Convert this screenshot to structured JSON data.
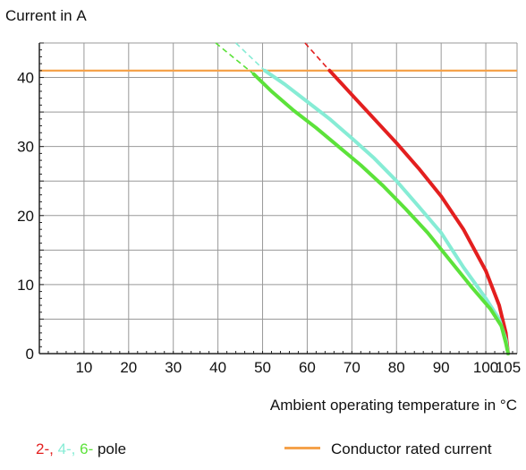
{
  "chart_data": {
    "type": "line",
    "title": "",
    "ylabel": "Current in A",
    "xlabel": "Ambient operating temperature in °C",
    "xlim": [
      0,
      107
    ],
    "ylim": [
      0,
      45
    ],
    "x_ticks": [
      10,
      20,
      30,
      40,
      50,
      60,
      70,
      80,
      90,
      100,
      105
    ],
    "y_ticks": [
      0,
      10,
      20,
      30,
      40
    ],
    "grid": true,
    "reference_line": {
      "name": "Conductor rated current",
      "y": 41,
      "color": "#f5a24b"
    },
    "legend": {
      "pole_prefix": [
        "2-, ",
        "4-, ",
        "6-"
      ],
      "pole_suffix": " pole",
      "rated_label": "Conductor rated current"
    },
    "series": [
      {
        "label": "2-",
        "color": "#e31f1f",
        "dashed_from": [
          59.5,
          45
        ],
        "dashed_to": [
          65,
          41
        ],
        "points": [
          [
            65,
            41
          ],
          [
            70,
            37.5
          ],
          [
            75,
            34
          ],
          [
            80,
            30.5
          ],
          [
            85,
            26.8
          ],
          [
            90,
            22.8
          ],
          [
            95,
            18
          ],
          [
            100,
            12
          ],
          [
            103,
            7
          ],
          [
            104.5,
            3
          ],
          [
            105,
            0
          ]
        ]
      },
      {
        "label": "4-",
        "color": "#86ecd5",
        "dashed_from": [
          44,
          45
        ],
        "dashed_to": [
          50.5,
          41
        ],
        "points": [
          [
            50.5,
            41
          ],
          [
            55,
            39
          ],
          [
            60,
            36.5
          ],
          [
            65,
            34
          ],
          [
            70,
            31.2
          ],
          [
            75,
            28.3
          ],
          [
            80,
            25
          ],
          [
            85,
            21.3
          ],
          [
            90,
            17.5
          ],
          [
            95,
            12.5
          ],
          [
            100,
            8
          ],
          [
            103,
            5
          ],
          [
            104.5,
            2
          ],
          [
            105,
            0
          ]
        ]
      },
      {
        "label": "6-",
        "color": "#5ce23a",
        "dashed_from": [
          39.5,
          45
        ],
        "dashed_to": [
          48,
          40.5
        ],
        "points": [
          [
            48,
            40.5
          ],
          [
            52,
            38
          ],
          [
            57,
            35.2
          ],
          [
            62,
            32.7
          ],
          [
            67,
            30
          ],
          [
            72,
            27.3
          ],
          [
            77,
            24.3
          ],
          [
            82,
            21
          ],
          [
            87,
            17.5
          ],
          [
            92,
            13.5
          ],
          [
            97,
            9.5
          ],
          [
            101,
            6.5
          ],
          [
            103.5,
            4
          ],
          [
            104.5,
            1.5
          ],
          [
            105,
            0
          ]
        ]
      }
    ]
  }
}
